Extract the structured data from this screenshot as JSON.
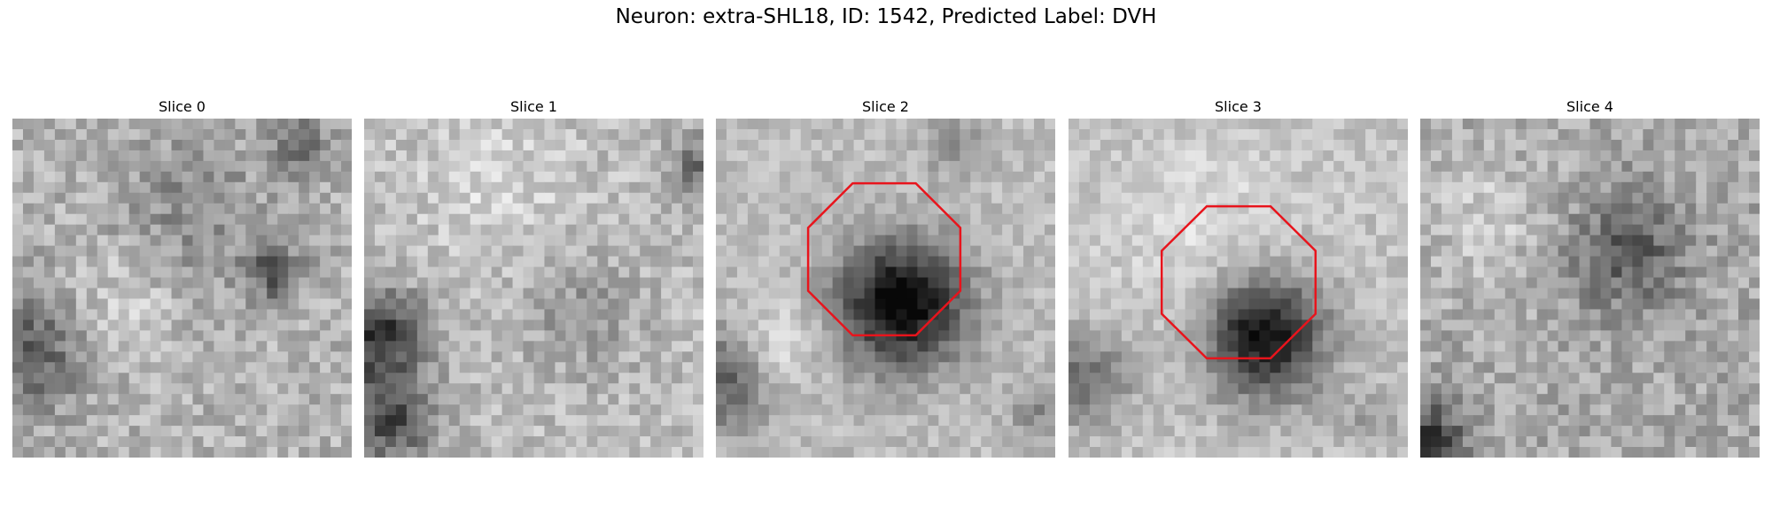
{
  "figure": {
    "title": "Neuron: extra-SHL18, ID: 1542, Predicted Label: DVH"
  },
  "panels": [
    {
      "title": "Slice 0",
      "has_roi": false
    },
    {
      "title": "Slice 1",
      "has_roi": false
    },
    {
      "title": "Slice 2",
      "has_roi": true
    },
    {
      "title": "Slice 3",
      "has_roi": true
    },
    {
      "title": "Slice 4",
      "has_roi": false
    }
  ],
  "colors": {
    "roi_outline": "#e8141c",
    "colormap": "grayscale"
  }
}
